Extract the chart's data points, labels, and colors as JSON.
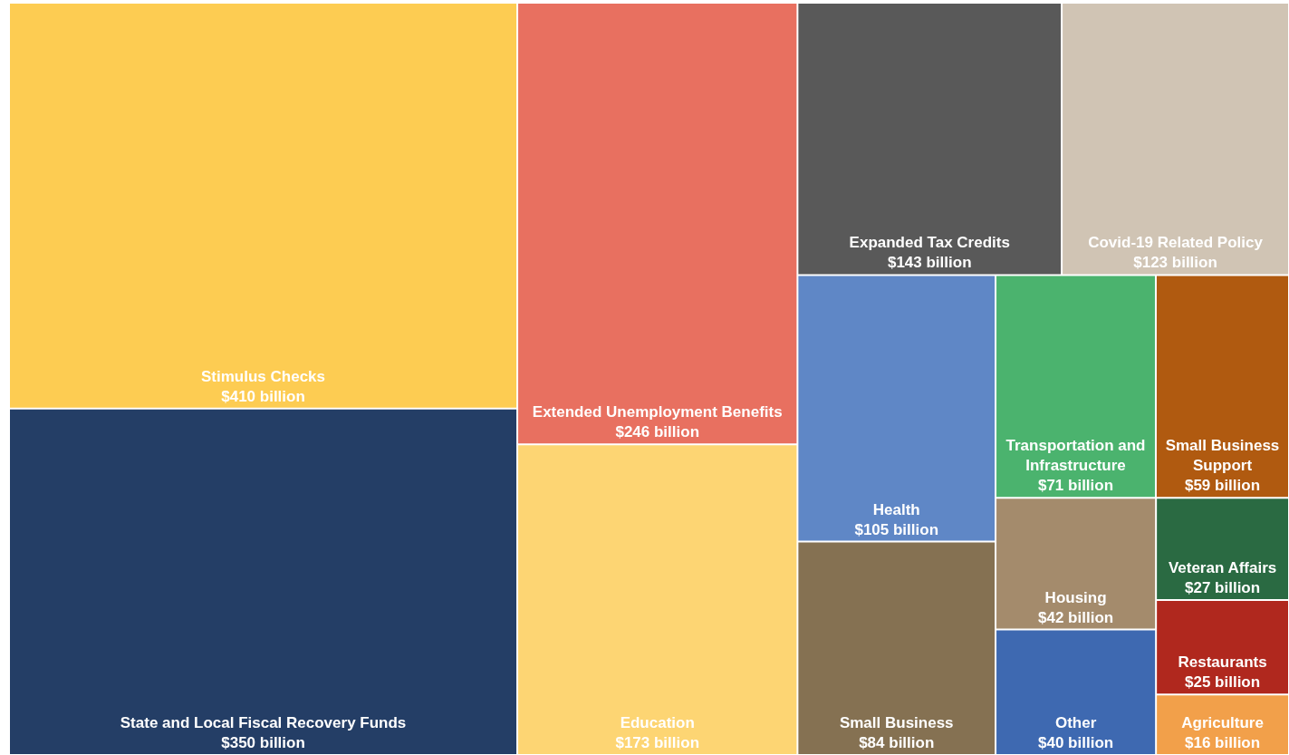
{
  "chart_data": {
    "type": "other",
    "categories": [
      "Stimulus Checks",
      "State and Local Fiscal Recovery Funds",
      "Extended Unemployment Benefits",
      "Education",
      "Expanded Tax Credits",
      "Covid-19 Related Policy",
      "Health",
      "Small Business",
      "Transportation and Infrastructure",
      "Small Business Support",
      "Housing",
      "Other",
      "Veteran Affairs",
      "Restaurants",
      "Agriculture"
    ],
    "values": [
      410,
      350,
      246,
      173,
      143,
      123,
      105,
      84,
      71,
      59,
      42,
      40,
      27,
      25,
      16
    ],
    "value_labels": [
      "$410 billion",
      "$350 billion",
      "$246 billion",
      "$173 billion",
      "$143 billion",
      "$123 billion",
      "$105 billion",
      "$84 billion",
      "$71 billion",
      "$59 billion",
      "$42 billion",
      "$40 billion",
      "$27 billion",
      "$25 billion",
      "$16 billion"
    ],
    "colors": [
      "#fdcc52",
      "#243e66",
      "#e87060",
      "#fdd573",
      "#595959",
      "#d0c4b4",
      "#5f87c6",
      "#857152",
      "#4bb36e",
      "#b05a10",
      "#a48b6c",
      "#3e69b1",
      "#2a6a42",
      "#b0281e",
      "#f2a04a"
    ]
  }
}
